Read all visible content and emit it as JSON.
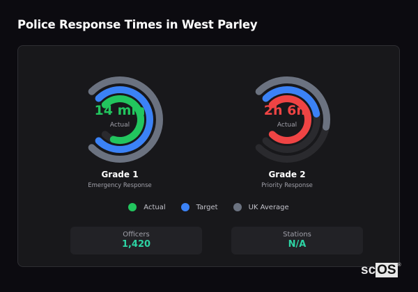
{
  "title": "Police Response Times in West Parley",
  "colors": {
    "actual_grade1": "#22c55e",
    "actual_grade2": "#ef4444",
    "target": "#3b82f6",
    "uk_average": "#6b7280",
    "track": "#2a2a2e",
    "stat_value": "#2dd4a4"
  },
  "gauges": [
    {
      "name": "Grade 1",
      "subtitle": "Emergency Response",
      "value": "14 min",
      "value_label": "Actual",
      "value_color": "#22c55e",
      "fill": {
        "uk_average": 1.0,
        "target": 1.0,
        "actual": 0.9
      }
    },
    {
      "name": "Grade 2",
      "subtitle": "Priority Response",
      "value": "2h 6m",
      "value_label": "Actual",
      "value_color": "#ef4444",
      "fill": {
        "uk_average": 0.54,
        "target": 0.46,
        "actual": 1.0
      }
    }
  ],
  "legend": [
    {
      "label": "Actual",
      "color": "#22c55e"
    },
    {
      "label": "Target",
      "color": "#3b82f6"
    },
    {
      "label": "UK Average",
      "color": "#6b7280"
    }
  ],
  "stats": [
    {
      "label": "Officers",
      "value": "1,420"
    },
    {
      "label": "Stations",
      "value": "N/A"
    }
  ],
  "logo": {
    "text_a": "sc",
    "text_b": "OS",
    "mark": "®"
  }
}
